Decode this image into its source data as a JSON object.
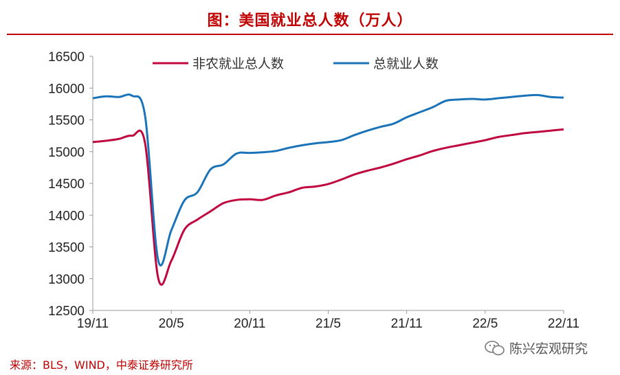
{
  "title": "图：美国就业总人数（万人）",
  "source": "来源：BLS，WIND，中泰证券研究所",
  "watermark": "陈兴宏观研究",
  "colors": {
    "accent": "#c00000",
    "nonfarm": "#c0063f",
    "total": "#1a73b8"
  },
  "chart_data": {
    "type": "line",
    "title": "图：美国就业总人数（万人）",
    "ylim": [
      12500,
      16500
    ],
    "yticks": [
      "16500",
      "16000",
      "15500",
      "15000",
      "14500",
      "14000",
      "13500",
      "13000",
      "12500"
    ],
    "xticks": [
      "19/11",
      "20/5",
      "20/11",
      "21/5",
      "21/11",
      "22/5",
      "22/11"
    ],
    "x": [
      "19/11",
      "19/12",
      "20/1",
      "20/2",
      "20/3",
      "20/4",
      "20/5",
      "20/6",
      "20/7",
      "20/8",
      "20/9",
      "20/10",
      "20/11",
      "20/12",
      "21/1",
      "21/2",
      "21/3",
      "21/4",
      "21/5",
      "21/6",
      "21/7",
      "21/8",
      "21/9",
      "21/10",
      "21/11",
      "21/12",
      "22/1",
      "22/2",
      "22/3",
      "22/4",
      "22/5",
      "22/6",
      "22/7",
      "22/8",
      "22/9",
      "22/10",
      "22/11"
    ],
    "legend_position": "top",
    "series": [
      {
        "name": "非农就业总人数",
        "values": [
          15150,
          15170,
          15200,
          15250,
          15130,
          13010,
          13280,
          13770,
          13930,
          14060,
          14190,
          14240,
          14250,
          14240,
          14310,
          14360,
          14430,
          14450,
          14490,
          14560,
          14640,
          14700,
          14750,
          14810,
          14880,
          14940,
          15010,
          15060,
          15100,
          15140,
          15180,
          15230,
          15260,
          15290,
          15310,
          15330,
          15350
        ]
      },
      {
        "name": "总就业人数",
        "values": [
          15840,
          15870,
          15860,
          15880,
          15560,
          13290,
          13760,
          14230,
          14360,
          14720,
          14800,
          14970,
          14980,
          14990,
          15010,
          15060,
          15100,
          15130,
          15150,
          15180,
          15260,
          15330,
          15390,
          15440,
          15540,
          15620,
          15700,
          15800,
          15820,
          15830,
          15820,
          15840,
          15860,
          15880,
          15890,
          15860,
          15850
        ]
      }
    ]
  }
}
